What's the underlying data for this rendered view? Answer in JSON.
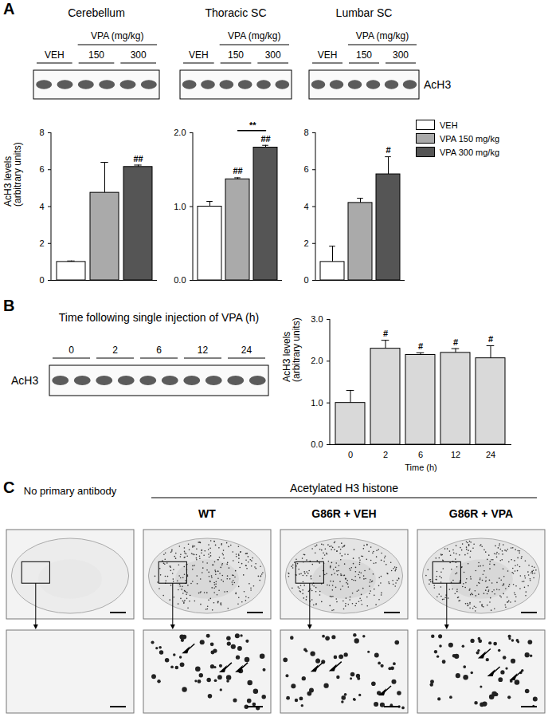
{
  "chart_data": [
    {
      "type": "bar",
      "title": "Cerebellum",
      "categories": [
        "VEH",
        "VPA 150 mg/kg",
        "VPA 300 mg/kg"
      ],
      "values": [
        1.0,
        4.75,
        6.15
      ],
      "errors": [
        0.05,
        1.65,
        0.1
      ],
      "colors": [
        "#ffffff",
        "#aaaaaa",
        "#555555"
      ],
      "ylabel": "AcH3 levels\n(arbitrary units)",
      "ylim": [
        0,
        8
      ],
      "yticks": [
        0,
        2,
        4,
        6,
        8
      ],
      "tick_labels": "y",
      "legend": "right",
      "annotations": [
        {
          "category": "VPA 300 mg/kg",
          "text": "##"
        }
      ]
    },
    {
      "type": "bar",
      "title": "Thoracic SC",
      "categories": [
        "VEH",
        "VPA 150 mg/kg",
        "VPA 300 mg/kg"
      ],
      "values": [
        1.0,
        1.37,
        1.8
      ],
      "errors": [
        0.07,
        0.02,
        0.03
      ],
      "colors": [
        "#ffffff",
        "#aaaaaa",
        "#555555"
      ],
      "ylim": [
        0,
        2
      ],
      "yticks": [
        0,
        1,
        2
      ],
      "tick_labels": "y",
      "annotations": [
        {
          "category": "VPA 150 mg/kg",
          "text": "##"
        },
        {
          "category": "VPA 300 mg/kg",
          "text": "##"
        },
        {
          "from": "VPA 150 mg/kg",
          "to": "VPA 300 mg/kg",
          "text": "**"
        }
      ]
    },
    {
      "type": "bar",
      "title": "Lumbar SC",
      "categories": [
        "VEH",
        "VPA 150 mg/kg",
        "VPA 300 mg/kg"
      ],
      "values": [
        1.0,
        4.2,
        5.75
      ],
      "errors": [
        0.85,
        0.25,
        0.95
      ],
      "colors": [
        "#ffffff",
        "#aaaaaa",
        "#555555"
      ],
      "ylim": [
        0,
        8
      ],
      "yticks": [
        0,
        2,
        4,
        6,
        8
      ],
      "tick_labels": "y",
      "annotations": [
        {
          "category": "VPA 300 mg/kg",
          "text": "#"
        }
      ]
    },
    {
      "type": "bar",
      "categories": [
        "0",
        "2",
        "6",
        "12",
        "24"
      ],
      "values": [
        1.0,
        2.3,
        2.15,
        2.2,
        2.07
      ],
      "errors": [
        0.3,
        0.2,
        0.05,
        0.1,
        0.3
      ],
      "color": "#d9d9d9",
      "xlabel": "Time (h)",
      "ylabel": "AcH3 levels\n(arbitrary units)",
      "ylim": [
        0,
        3
      ],
      "yticks": [
        0,
        1,
        2,
        3
      ],
      "annotations": [
        {
          "category": "2",
          "text": "#"
        },
        {
          "category": "6",
          "text": "#"
        },
        {
          "category": "12",
          "text": "#"
        },
        {
          "category": "24",
          "text": "#"
        }
      ]
    }
  ],
  "figure": {
    "panels": [
      "A",
      "B",
      "C"
    ],
    "blot_A": {
      "groups": [
        "VEH",
        "150",
        "300"
      ],
      "dose_label": "VPA (mg/kg)",
      "protein": "AcH3"
    },
    "blot_B": {
      "heading": "Time following single injection of VPA (h)",
      "lanes": [
        "0",
        "2",
        "6",
        "12",
        "24"
      ],
      "protein": "AcH3"
    },
    "panel_C": {
      "group_label": "Acetylated H3 histone",
      "columns": [
        "No primary antibody",
        "WT",
        "G86R + VEH",
        "G86R + VPA"
      ]
    }
  }
}
